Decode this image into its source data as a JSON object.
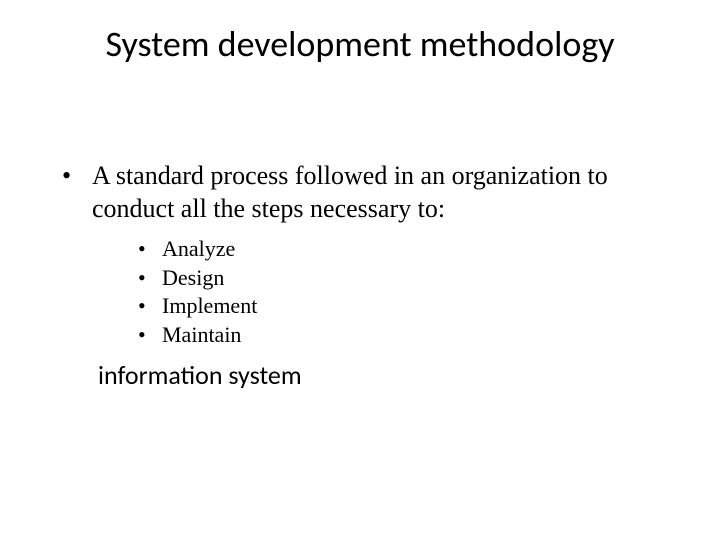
{
  "title": "System development methodology",
  "main_bullet": "A standard process followed in an organization to conduct all the steps necessary to:",
  "sub_bullets": [
    "Analyze",
    "Design",
    "Implement",
    "Maintain"
  ],
  "closing": "information system",
  "style": {
    "background_color": "#ffffff",
    "text_color": "#000000",
    "title_font": "Calibri",
    "title_fontsize_pt": 36,
    "body_font": "Times New Roman",
    "body_fontsize_pt": 26,
    "sub_fontsize_pt": 22,
    "closing_font": "Calibri",
    "bullet_char": "•"
  }
}
